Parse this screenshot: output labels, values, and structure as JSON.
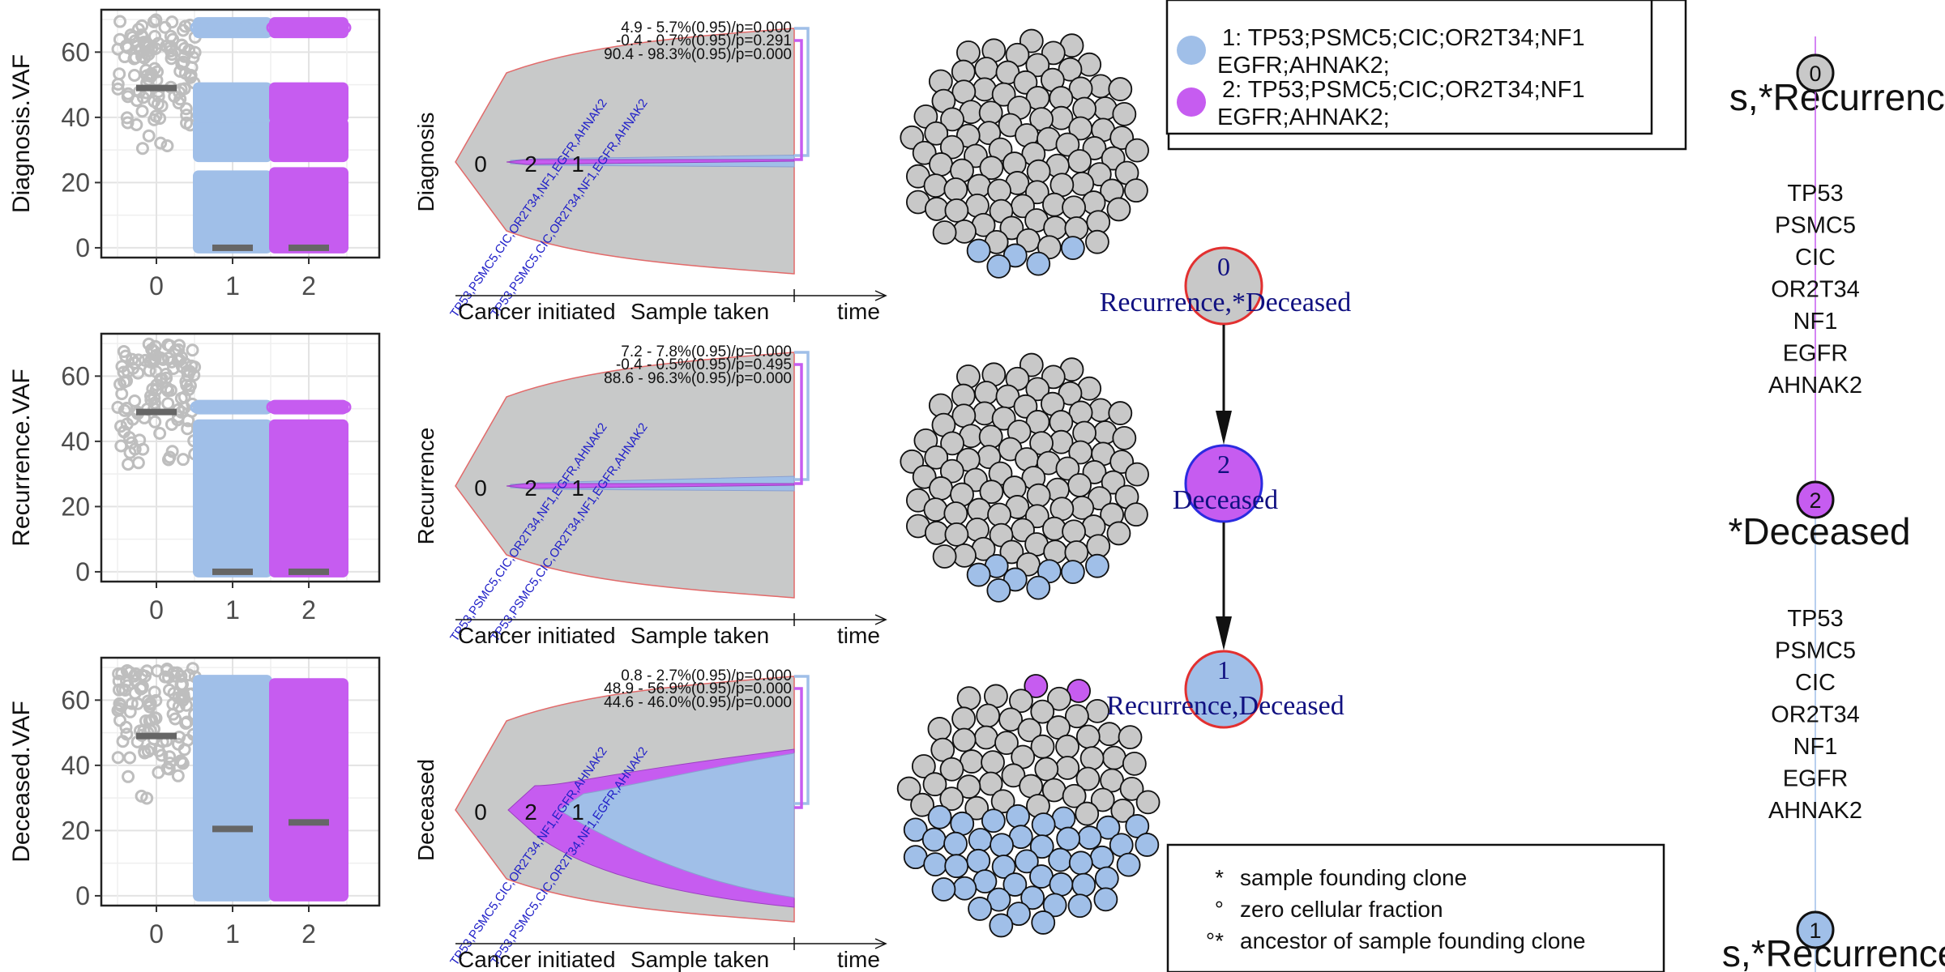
{
  "colors": {
    "clone0": "#c8c8c8",
    "clone0_points": "#bebebe",
    "clone1": "#a0bfe8",
    "clone2": "#c65cf0",
    "median_bar": "#666666",
    "fish_gray": "#c8c9c9",
    "fish_outline": "#e26a6a",
    "blue_text": "#2020c8",
    "node_text": "#101080",
    "edge_red": "#e23030",
    "edge_blue": "#2b2be0"
  },
  "chart_data": [
    {
      "type": "scatter",
      "title": "",
      "panel": "vaf",
      "sample": "Diagnosis",
      "ylabel": "Diagnosis.VAF",
      "xlabel": "",
      "categories": [
        "0",
        "1",
        "2"
      ],
      "ylim": [
        -3,
        73
      ],
      "yticks": [
        0,
        20,
        40,
        60
      ],
      "grid": true,
      "series": [
        {
          "name": "0",
          "color": "#bebebe",
          "median": 49,
          "bands": [
            [
              28,
              70
            ]
          ]
        },
        {
          "name": "1",
          "color": "#a0bfe8",
          "median": 0,
          "bands": [
            [
              0,
              22
            ],
            [
              28,
              38
            ],
            [
              40,
              49
            ],
            [
              66,
              69
            ]
          ]
        },
        {
          "name": "2",
          "color": "#c65cf0",
          "median": 0,
          "bands": [
            [
              0,
              23
            ],
            [
              28,
              38
            ],
            [
              40,
              49
            ],
            [
              66,
              69
            ]
          ]
        }
      ]
    },
    {
      "type": "scatter",
      "title": "",
      "panel": "vaf",
      "sample": "Recurrence",
      "ylabel": "Recurrence.VAF",
      "xlabel": "",
      "categories": [
        "0",
        "1",
        "2"
      ],
      "ylim": [
        -3,
        73
      ],
      "yticks": [
        0,
        20,
        40,
        60
      ],
      "grid": true,
      "series": [
        {
          "name": "0",
          "color": "#bebebe",
          "median": 49,
          "bands": [
            [
              30,
              70
            ]
          ]
        },
        {
          "name": "1",
          "color": "#a0bfe8",
          "median": 0,
          "bands": [
            [
              0,
              45
            ],
            [
              50,
              51
            ]
          ]
        },
        {
          "name": "2",
          "color": "#c65cf0",
          "median": 0,
          "bands": [
            [
              0,
              45
            ],
            [
              50,
              51
            ]
          ]
        }
      ]
    },
    {
      "type": "scatter",
      "title": "",
      "panel": "vaf",
      "sample": "Deceased",
      "ylabel": "Deceased.VAF",
      "xlabel": "",
      "categories": [
        "0",
        "1",
        "2"
      ],
      "ylim": [
        -3,
        73
      ],
      "yticks": [
        0,
        20,
        40,
        60
      ],
      "grid": true,
      "series": [
        {
          "name": "0",
          "color": "#bebebe",
          "median": 49,
          "bands": [
            [
              28,
              70
            ]
          ]
        },
        {
          "name": "1",
          "color": "#a0bfe8",
          "median": 20.5,
          "bands": [
            [
              0,
              66
            ]
          ]
        },
        {
          "name": "2",
          "color": "#c65cf0",
          "median": 22.5,
          "bands": [
            [
              0,
              65
            ]
          ]
        }
      ]
    },
    {
      "type": "area",
      "panel": "fishplot",
      "sample": "Diagnosis",
      "ylabel": "Diagnosis",
      "xaxis_labels": [
        "Cancer initiated",
        "Sample taken",
        "time"
      ],
      "clone_labels": [
        "0",
        "2",
        "1"
      ],
      "cellular_fraction": {
        "clone0": 100,
        "clone2": 0.3,
        "clone1": 5.3
      },
      "annotations": [
        "4.9 - 5.7%(0.95)/p=0.000",
        "-0.4 - 0.7%(0.95)/p=0.291",
        "90.4 - 98.3%(0.95)/p=0.000"
      ],
      "mutation_labels": [
        "TP53,PSMC5,CIC,OR2T34,NF1,EGFR,AHNAK2",
        "TP53,PSMC5,CIC,OR2T34,NF1,EGFR,AHNAK2"
      ]
    },
    {
      "type": "area",
      "panel": "fishplot",
      "sample": "Recurrence",
      "ylabel": "Recurrence",
      "xaxis_labels": [
        "Cancer initiated",
        "Sample taken",
        "time"
      ],
      "clone_labels": [
        "0",
        "2",
        "1"
      ],
      "cellular_fraction": {
        "clone0": 100,
        "clone2": 0.1,
        "clone1": 7.5
      },
      "annotations": [
        "7.2 - 7.8%(0.95)/p=0.000",
        "-0.4 - 0.5%(0.95)/p=0.495",
        "88.6 - 96.3%(0.95)/p=0.000"
      ],
      "mutation_labels": [
        "TP53,PSMC5,CIC,OR2T34,NF1,EGFR,AHNAK2",
        "TP53,PSMC5,CIC,OR2T34,NF1,EGFR,AHNAK2"
      ]
    },
    {
      "type": "area",
      "panel": "fishplot",
      "sample": "Deceased",
      "ylabel": "Deceased",
      "xaxis_labels": [
        "Cancer initiated",
        "Sample taken",
        "time"
      ],
      "clone_labels": [
        "0",
        "2",
        "1"
      ],
      "cellular_fraction": {
        "clone0": 100,
        "clone2": 1.8,
        "clone1": 45.3
      },
      "annotations": [
        "0.8 - 2.7%(0.95)/p=0.000",
        "48.9 - 56.9%(0.95)/p=0.000",
        "44.6 - 46.0%(0.95)/p=0.000"
      ],
      "mutation_labels": [
        "TP53,PSMC5,CIC,OR2T34,NF1,EGFR,AHNAK2",
        "TP53,PSMC5,CIC,OR2T34,NF1,EGFR,AHNAK2"
      ]
    }
  ],
  "cell_plots": [
    {
      "sample": "Diagnosis",
      "counts": {
        "0": 95,
        "1": 5,
        "2": 0
      }
    },
    {
      "sample": "Recurrence",
      "counts": {
        "0": 92,
        "1": 8,
        "2": 0
      }
    },
    {
      "sample": "Deceased",
      "counts": {
        "0": 52,
        "1": 46,
        "2": 2
      }
    }
  ],
  "node_tree": {
    "nodes": [
      {
        "id": "0",
        "label": "0",
        "caption": "Recurrence,*Deceased",
        "fill": "#c8c8c8",
        "border": "#e23030"
      },
      {
        "id": "2",
        "label": "2",
        "caption": "Deceased",
        "fill": "#c65cf0",
        "border": "#2b2be0"
      },
      {
        "id": "1",
        "label": "1",
        "caption": "Recurrence,Deceased",
        "fill": "#a0bfe8",
        "border": "#e23030"
      }
    ],
    "edges": [
      [
        "0",
        "2"
      ],
      [
        "2",
        "1"
      ]
    ]
  },
  "legend": {
    "items": [
      {
        "label": "1: TP53;PSMC5;CIC;OR2T34;NF1",
        "label2": "EGFR;AHNAK2;",
        "color": "#a0bfe8"
      },
      {
        "label": "2: TP53;PSMC5;CIC;OR2T34;NF1",
        "label2": "EGFR;AHNAK2;",
        "color": "#c65cf0"
      }
    ],
    "behind_top": "s,*Recurrence,*",
    "behind_bottom": "s,*Recurrence,*"
  },
  "symbol_legend": [
    {
      "symbol": "*",
      "text": "sample founding clone"
    },
    {
      "symbol": "°",
      "text": "zero cellular fraction"
    },
    {
      "symbol": "°*",
      "text": "ancestor of sample founding clone"
    }
  ],
  "vertical_tree": {
    "nodes": [
      {
        "label": "0",
        "fill": "#c8c8c8"
      },
      {
        "label": "2",
        "fill": "#c65cf0",
        "caption": "*Deceased"
      },
      {
        "label": "1",
        "fill": "#a0bfe8"
      }
    ],
    "edge1_genes": [
      "TP53",
      "PSMC5",
      "CIC",
      "OR2T34",
      "NF1",
      "EGFR",
      "AHNAK2"
    ],
    "edge2_genes": [
      "TP53",
      "PSMC5",
      "CIC",
      "OR2T34",
      "NF1",
      "EGFR",
      "AHNAK2"
    ]
  }
}
